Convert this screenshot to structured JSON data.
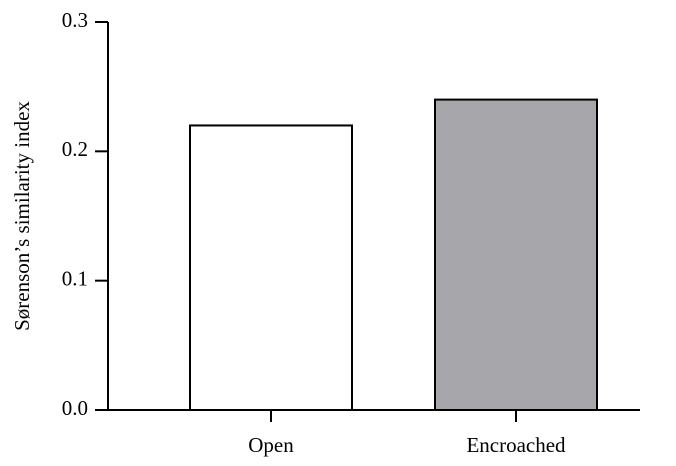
{
  "chart_data": {
    "type": "bar",
    "y_label": "Sørenson’s similarity index",
    "categories": [
      "Open",
      "Encroached"
    ],
    "values": [
      0.22,
      0.24
    ],
    "colors": [
      "#ffffff",
      "#a7a6aa"
    ],
    "ylim": [
      0,
      0.3
    ],
    "yticks": [
      {
        "value": 0,
        "label": "0.0"
      },
      0.1,
      0.2,
      0.3
    ]
  }
}
